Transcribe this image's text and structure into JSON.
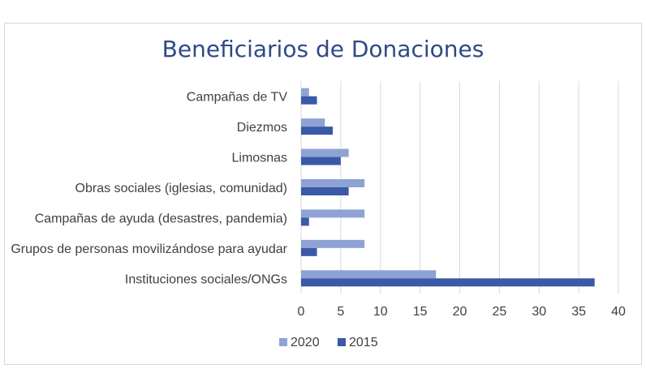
{
  "chart_data": {
    "type": "bar",
    "orientation": "horizontal",
    "title": "Beneficiarios de Donaciones",
    "categories": [
      "Campañas de TV",
      "Diezmos",
      "Limosnas",
      "Obras sociales (iglesias, comunidad)",
      "Campañas de ayuda (desastres, pandemia)",
      "Grupos de personas movilizándose para ayudar",
      "Instituciones sociales/ONGs"
    ],
    "series": [
      {
        "name": "2020",
        "color": "#8ea3d4",
        "values": [
          1,
          3,
          6,
          8,
          8,
          8,
          17
        ]
      },
      {
        "name": "2015",
        "color": "#3a5aa8",
        "values": [
          2,
          4,
          5,
          6,
          1,
          2,
          37
        ]
      }
    ],
    "xlim": [
      0,
      40
    ],
    "xticks": [
      "0",
      "5",
      "10",
      "15",
      "20",
      "25",
      "30",
      "35",
      "40"
    ],
    "xlabel": "",
    "ylabel": "",
    "grid": true,
    "legend": "bottom"
  }
}
